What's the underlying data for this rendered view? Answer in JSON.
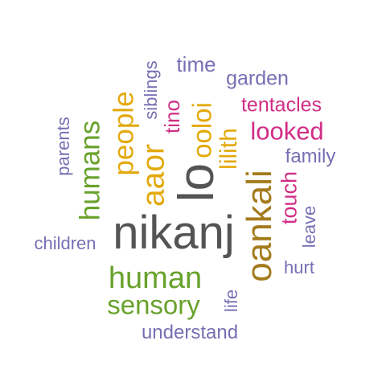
{
  "palette": {
    "gray": "#545454",
    "brown": "#a47b1c",
    "gold": "#e3a90b",
    "green": "#68a22c",
    "magenta": "#d12e86",
    "purple": "#7570b3"
  },
  "words": [
    {
      "text": "nikanj",
      "color": "#545454"
    },
    {
      "text": "lo",
      "color": "#545454"
    },
    {
      "text": "oankali",
      "color": "#a47b1c"
    },
    {
      "text": "human",
      "color": "#68a22c"
    },
    {
      "text": "sensory",
      "color": "#68a22c"
    },
    {
      "text": "humans",
      "color": "#68a22c"
    },
    {
      "text": "people",
      "color": "#e3a90b"
    },
    {
      "text": "aaor",
      "color": "#e3a90b"
    },
    {
      "text": "ooloi",
      "color": "#e3a90b"
    },
    {
      "text": "lilith",
      "color": "#e3a90b"
    },
    {
      "text": "tino",
      "color": "#d12e86"
    },
    {
      "text": "looked",
      "color": "#d12e86"
    },
    {
      "text": "tentacles",
      "color": "#d12e86"
    },
    {
      "text": "touch",
      "color": "#d12e86"
    },
    {
      "text": "time",
      "color": "#7570b3"
    },
    {
      "text": "garden",
      "color": "#7570b3"
    },
    {
      "text": "siblings",
      "color": "#7570b3"
    },
    {
      "text": "family",
      "color": "#7570b3"
    },
    {
      "text": "parents",
      "color": "#7570b3"
    },
    {
      "text": "children",
      "color": "#7570b3"
    },
    {
      "text": "leave",
      "color": "#7570b3"
    },
    {
      "text": "hurt",
      "color": "#7570b3"
    },
    {
      "text": "life",
      "color": "#7570b3"
    },
    {
      "text": "understand",
      "color": "#7570b3"
    }
  ]
}
